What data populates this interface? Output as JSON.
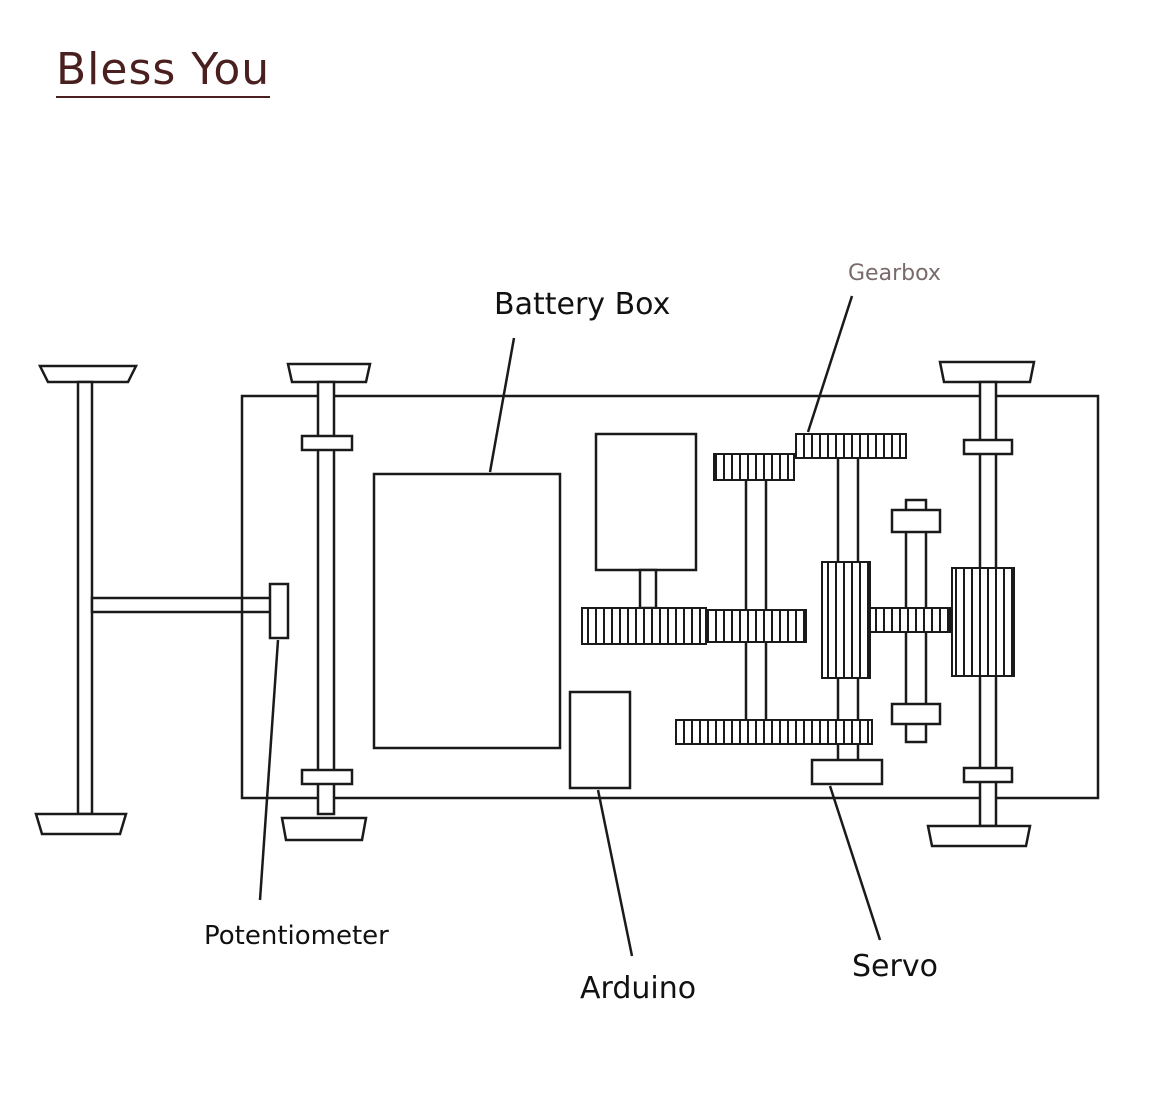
{
  "title": "Bless You",
  "labels": {
    "battery_box": "Battery Box",
    "gearbox": "Gearbox",
    "potentiometer": "Potentiometer",
    "arduino": "Arduino",
    "servo": "Servo"
  },
  "colors": {
    "title": "#4a1f1f",
    "ink": "#1a1a1a",
    "gearbox_label": "#7a6a6a"
  }
}
